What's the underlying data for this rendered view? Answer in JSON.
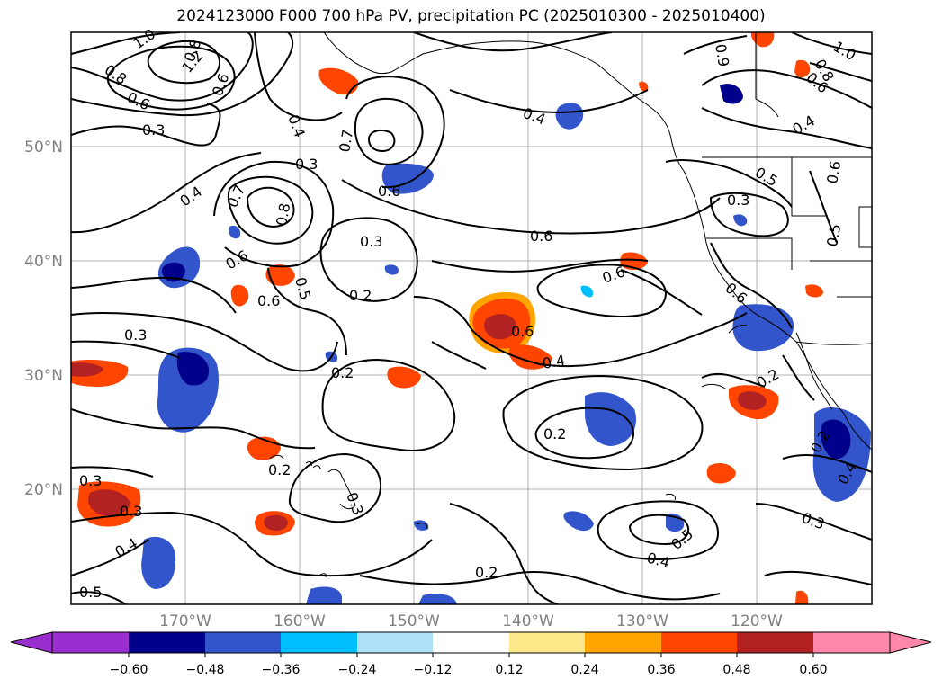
{
  "title": "2024123000 F000 700 hPa PV, precipitation PC (2025010300 - 2025010400)",
  "lat_labels": [
    "50°N",
    "40°N",
    "30°N",
    "20°N"
  ],
  "lon_labels": [
    "170°W",
    "160°W",
    "150°W",
    "140°W",
    "130°W",
    "120°W"
  ],
  "colorbar": {
    "ticks": [
      "−0.60",
      "−0.48",
      "−0.36",
      "−0.24",
      "−0.12",
      "0.12",
      "0.24",
      "0.36",
      "0.48",
      "0.60"
    ],
    "colors": [
      "#9a2fd0",
      "#00008b",
      "#3355cc",
      "#00bfff",
      "#aee0f8",
      "#ffffff",
      "#fde88a",
      "#ffa500",
      "#ff4500",
      "#b22222",
      "#ff88aa"
    ]
  },
  "contour_labels": [
    "1.0",
    "1.2",
    "0.8",
    "0.6",
    "0.3",
    "0.4",
    "0.7",
    "0.3",
    "0.6",
    "0.4",
    "0.7",
    "0.8",
    "0.3",
    "0.6",
    "0.5",
    "0.6",
    "0.3",
    "0.2",
    "0.3",
    "0.2",
    "0.4",
    "0.5",
    "0.6",
    "0.6",
    "0.4",
    "0.2",
    "0.2",
    "0.2",
    "0.3",
    "0.3",
    "0.4",
    "0.5",
    "0.2",
    "0.4",
    "0.5",
    "0.3",
    "0.9",
    "0.8",
    "0.6",
    "0.4",
    "0.5",
    "0.6",
    "0.3",
    "0.6",
    "0.6",
    "0.2",
    "0.4",
    "1.0",
    "0.8",
    "0.6"
  ]
}
